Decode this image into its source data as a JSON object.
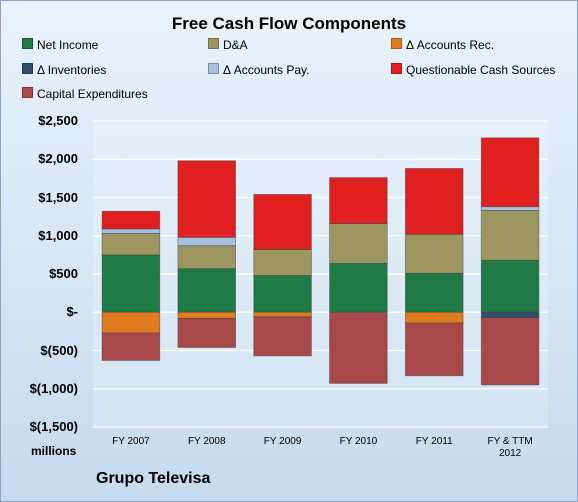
{
  "chart_data": {
    "type": "bar",
    "stacked": true,
    "title": "Free Cash Flow Components",
    "units_label": "millions",
    "company": "Grupo Televisa",
    "categories": [
      "FY 2007",
      "FY 2008",
      "FY 2009",
      "FY 2010",
      "FY 2011",
      "FY & TTM 2012"
    ],
    "ylim": [
      -1500,
      2500
    ],
    "yticks": [
      {
        "value": 2500,
        "label": "$2,500"
      },
      {
        "value": 2000,
        "label": "$2,000"
      },
      {
        "value": 1500,
        "label": "$1,500"
      },
      {
        "value": 1000,
        "label": "$1,000"
      },
      {
        "value": 500,
        "label": "$500"
      },
      {
        "value": 0,
        "label": "$-"
      },
      {
        "value": -500,
        "label": "$(500)"
      },
      {
        "value": -1000,
        "label": "$(1,000)"
      },
      {
        "value": -1500,
        "label": "$(1,500)"
      }
    ],
    "grid": true,
    "legend_position": "top",
    "series": [
      {
        "name": "Net Income",
        "color": "#1f7a45",
        "values": [
          750,
          570,
          480,
          640,
          510,
          680
        ]
      },
      {
        "name": "D&A",
        "color": "#9e9660",
        "values": [
          280,
          300,
          340,
          520,
          510,
          650
        ]
      },
      {
        "name": "Δ Accounts Rec.",
        "color": "#e07c20",
        "values": [
          -270,
          -80,
          -60,
          0,
          -140,
          0
        ]
      },
      {
        "name": "Δ Inventories",
        "color": "#304c6e",
        "values": [
          0,
          0,
          0,
          0,
          0,
          -70
        ]
      },
      {
        "name": "Δ Accounts Pay.",
        "color": "#a9bfde",
        "values": [
          60,
          110,
          0,
          0,
          0,
          50
        ]
      },
      {
        "name": "Questionable Cash Sources",
        "color": "#e02020",
        "values": [
          230,
          1000,
          720,
          600,
          860,
          900
        ]
      },
      {
        "name": "Capital Expenditures",
        "color": "#a84848",
        "values": [
          -360,
          -380,
          -510,
          -930,
          -690,
          -880
        ]
      }
    ]
  }
}
